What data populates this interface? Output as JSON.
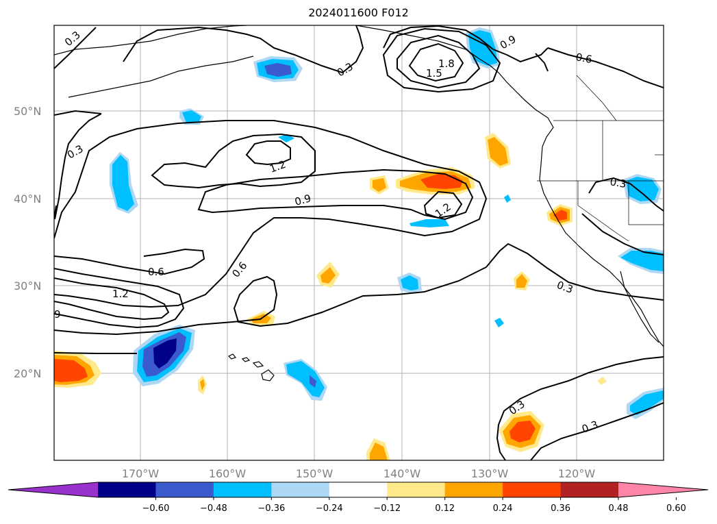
{
  "title": "2024011600 F012",
  "lat_labels": [
    "50°N",
    "40°N",
    "30°N",
    "20°N"
  ],
  "lon_labels": [
    "170°W",
    "160°W",
    "150°W",
    "140°W",
    "130°W",
    "120°W"
  ],
  "contour_labels": [
    "0.3",
    "0.3",
    "1.8",
    "1.5",
    "0.9",
    "0.6",
    "0.3",
    "1.2",
    "0.9",
    "1.2",
    "0.3",
    "0.6",
    "0.6",
    "1.2",
    "9",
    "0.3",
    "0.3",
    "0.3"
  ],
  "colorbar": {
    "colors": [
      "#9932cc",
      "#00008b",
      "#3a5acd",
      "#00bfff",
      "#add8f5",
      "#ffffff",
      "#ffe98a",
      "#ffa500",
      "#ff4500",
      "#b22222",
      "#ff85a8"
    ],
    "ticks": [
      "−0.60",
      "−0.48",
      "−0.36",
      "−0.24",
      "−0.12",
      "0.12",
      "0.24",
      "0.36",
      "0.48",
      "0.60"
    ]
  }
}
